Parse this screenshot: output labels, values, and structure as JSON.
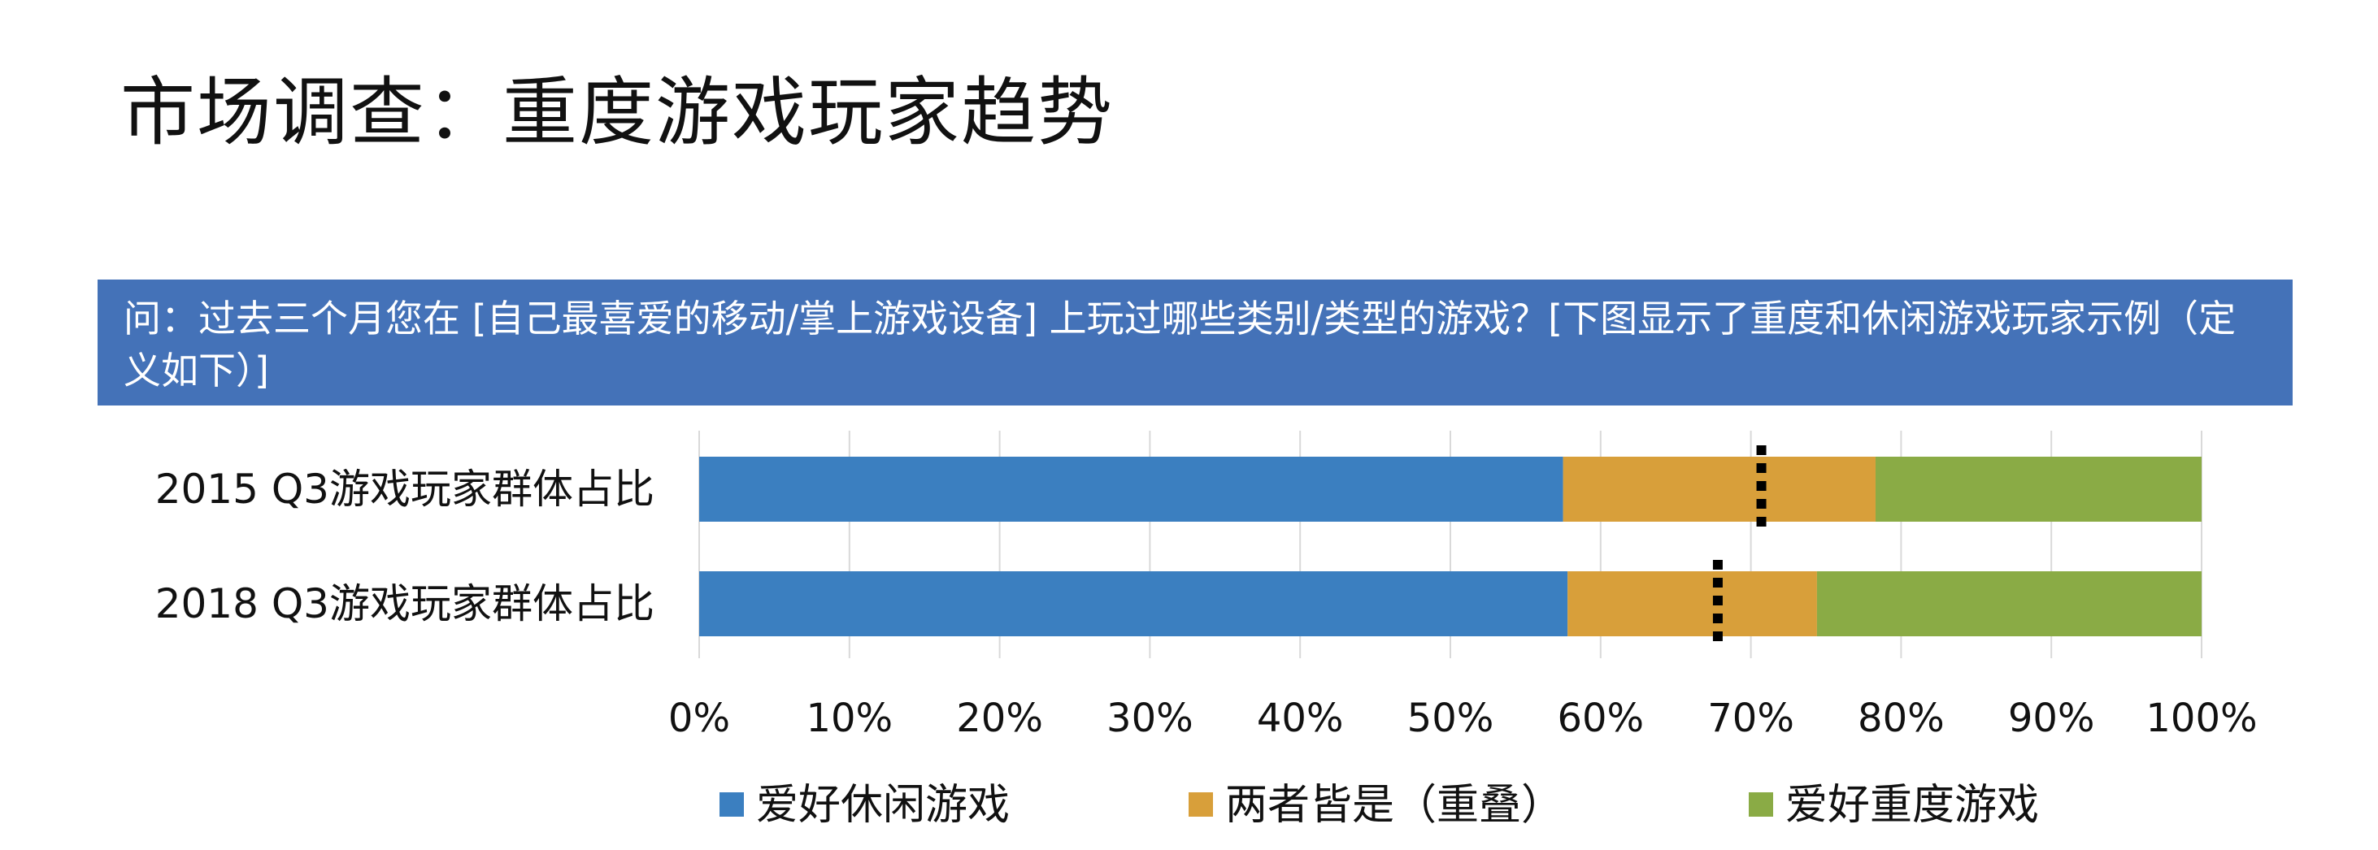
{
  "title": "市场调查：重度游戏玩家趋势",
  "question": "问：过去三个月您在 [自己最喜爱的移动/掌上游戏设备] 上玩过哪些类别/类型的游戏？[下图显示了重度和休闲游戏玩家示例（定义如下）]",
  "chart_data": {
    "type": "bar",
    "orientation": "horizontal",
    "stacked": true,
    "categories": [
      "2015 Q3游戏玩家群体占比",
      "2018 Q3游戏玩家群体占比"
    ],
    "series": [
      {
        "name": "爱好休闲游戏",
        "color": "#3b7fc0",
        "values": [
          57.5,
          57.8
        ]
      },
      {
        "name": "两者皆是（重叠）",
        "color": "#d89f3a",
        "values": [
          20.8,
          16.6
        ]
      },
      {
        "name": "爱好重度游戏",
        "color": "#8aab45",
        "values": [
          21.7,
          25.6
        ]
      }
    ],
    "markers": [
      70.7,
      67.8
    ],
    "xlim": [
      0,
      100
    ],
    "xticks": [
      "0%",
      "10%",
      "20%",
      "30%",
      "40%",
      "50%",
      "60%",
      "70%",
      "80%",
      "90%",
      "100%"
    ],
    "grid": true,
    "legend": "bottom"
  }
}
